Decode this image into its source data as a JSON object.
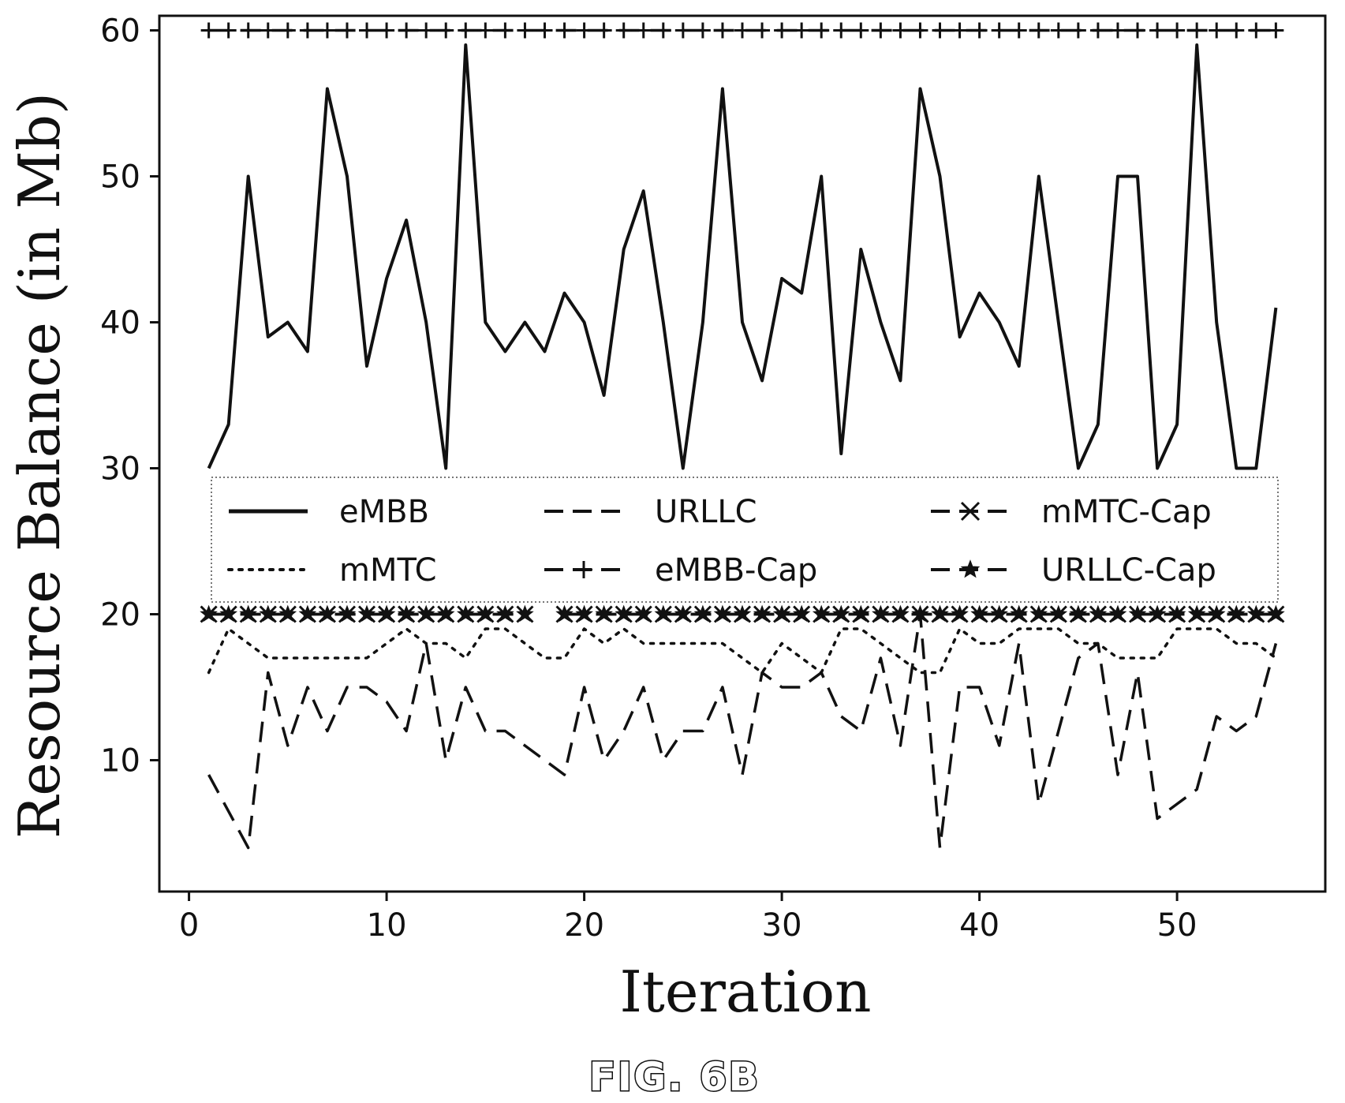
{
  "chart_data": {
    "type": "line",
    "title": "",
    "xlabel": "Iteration",
    "ylabel": "Resource Balance (in Mb)",
    "xlim": [
      -1.5,
      57.5
    ],
    "ylim": [
      1,
      61
    ],
    "xticks": [
      0,
      10,
      20,
      30,
      40,
      50
    ],
    "yticks": [
      10,
      20,
      30,
      40,
      50,
      60
    ],
    "grid": false,
    "legend_position": "center",
    "legend_columns": 3,
    "series": [
      {
        "name": "eMBB",
        "style": "solid",
        "marker": "none",
        "x": [
          1,
          2,
          3,
          4,
          5,
          6,
          7,
          8,
          9,
          10,
          11,
          12,
          13,
          14,
          15,
          16,
          17,
          18,
          19,
          20,
          21,
          22,
          23,
          24,
          25,
          26,
          27,
          28,
          29,
          30,
          31,
          32,
          33,
          34,
          35,
          36,
          37,
          38,
          39,
          40,
          41,
          42,
          43,
          44,
          45,
          46,
          47,
          48,
          49,
          50,
          51,
          52,
          53,
          54,
          55
        ],
        "values": [
          30,
          33,
          50,
          39,
          40,
          38,
          56,
          50,
          37,
          43,
          47,
          40,
          30,
          59,
          40,
          38,
          40,
          38,
          42,
          40,
          35,
          45,
          49,
          40,
          30,
          40,
          56,
          40,
          36,
          43,
          42,
          50,
          31,
          45,
          40,
          36,
          56,
          50,
          39,
          42,
          40,
          37,
          50,
          40,
          30,
          33,
          50,
          50,
          30,
          33,
          59,
          40,
          30,
          30,
          41
        ]
      },
      {
        "name": "URLLC",
        "style": "dashed",
        "marker": "none",
        "x": [
          1,
          2,
          3,
          4,
          5,
          6,
          7,
          8,
          9,
          10,
          11,
          12,
          13,
          14,
          15,
          16,
          17,
          18,
          19,
          20,
          21,
          22,
          23,
          24,
          25,
          26,
          27,
          28,
          29,
          30,
          31,
          32,
          33,
          34,
          35,
          36,
          37,
          38,
          39,
          40,
          41,
          42,
          43,
          44,
          45,
          46,
          47,
          48,
          49,
          50,
          51,
          52,
          53,
          54,
          55
        ],
        "values": [
          9,
          6.5,
          4,
          16,
          11,
          15,
          12,
          15,
          15,
          14,
          12,
          18,
          10,
          15,
          12,
          12,
          11,
          10,
          9,
          15,
          10,
          12,
          15,
          10,
          12,
          12,
          15,
          9,
          16,
          15,
          15,
          16,
          13,
          12,
          17,
          11,
          20,
          4,
          15,
          15,
          11,
          18,
          7,
          12,
          17,
          18,
          9,
          16,
          6,
          7,
          8,
          13,
          12,
          13,
          18
        ]
      },
      {
        "name": "mMTC",
        "style": "dotted",
        "marker": "none",
        "x": [
          1,
          2,
          3,
          4,
          5,
          6,
          7,
          8,
          9,
          10,
          11,
          12,
          13,
          14,
          15,
          16,
          17,
          18,
          19,
          20,
          21,
          22,
          23,
          24,
          25,
          26,
          27,
          28,
          29,
          30,
          31,
          32,
          33,
          34,
          35,
          36,
          37,
          38,
          39,
          40,
          41,
          42,
          43,
          44,
          45,
          46,
          47,
          48,
          49,
          50,
          51,
          52,
          53,
          54,
          55
        ],
        "values": [
          16,
          19,
          18,
          17,
          17,
          17,
          17,
          17,
          17,
          18,
          19,
          18,
          18,
          17,
          19,
          19,
          18,
          17,
          17,
          19,
          18,
          19,
          18,
          18,
          18,
          18,
          18,
          17,
          16,
          18,
          17,
          16,
          19,
          19,
          18,
          17,
          16,
          16,
          19,
          18,
          18,
          19,
          19,
          19,
          18,
          18,
          17,
          17,
          17,
          19,
          19,
          19,
          18,
          18,
          17
        ]
      },
      {
        "name": "eMBB-Cap",
        "style": "dashed",
        "marker": "+",
        "x": [
          1,
          2,
          3,
          4,
          5,
          6,
          7,
          8,
          9,
          10,
          11,
          12,
          13,
          14,
          15,
          16,
          17,
          18,
          19,
          20,
          21,
          22,
          23,
          24,
          25,
          26,
          27,
          28,
          29,
          30,
          31,
          32,
          33,
          34,
          35,
          36,
          37,
          38,
          39,
          40,
          41,
          42,
          43,
          44,
          45,
          46,
          47,
          48,
          49,
          50,
          51,
          52,
          53,
          54,
          55
        ],
        "values": [
          60,
          60,
          60,
          60,
          60,
          60,
          60,
          60,
          60,
          60,
          60,
          60,
          60,
          60,
          60,
          60,
          60,
          60,
          60,
          60,
          60,
          60,
          60,
          60,
          60,
          60,
          60,
          60,
          60,
          60,
          60,
          60,
          60,
          60,
          60,
          60,
          60,
          60,
          60,
          60,
          60,
          60,
          60,
          60,
          60,
          60,
          60,
          60,
          60,
          60,
          60,
          60,
          60,
          60,
          60
        ]
      },
      {
        "name": "mMTC-Cap",
        "style": "dashed",
        "marker": "x",
        "x": [
          1,
          2,
          3,
          4,
          5,
          6,
          7,
          8,
          9,
          10,
          11,
          12,
          13,
          14,
          15,
          16,
          17,
          19,
          20,
          21,
          22,
          23,
          24,
          25,
          26,
          27,
          28,
          29,
          30,
          31,
          32,
          33,
          34,
          35,
          36,
          37,
          38,
          39,
          40,
          41,
          42,
          43,
          44,
          45,
          46,
          47,
          48,
          49,
          50,
          51,
          52,
          53,
          54,
          55
        ],
        "values": [
          20,
          20,
          20,
          20,
          20,
          20,
          20,
          20,
          20,
          20,
          20,
          20,
          20,
          20,
          20,
          20,
          20,
          20,
          20,
          20,
          20,
          20,
          20,
          20,
          20,
          20,
          20,
          20,
          20,
          20,
          20,
          20,
          20,
          20,
          20,
          20,
          20,
          20,
          20,
          20,
          20,
          20,
          20,
          20,
          20,
          20,
          20,
          20,
          20,
          20,
          20,
          20,
          20,
          20
        ]
      },
      {
        "name": "URLLC-Cap",
        "style": "dashed",
        "marker": "*",
        "x": [
          1,
          2,
          3,
          4,
          5,
          6,
          7,
          8,
          9,
          10,
          11,
          12,
          13,
          14,
          15,
          16,
          17,
          19,
          20,
          21,
          22,
          23,
          24,
          25,
          26,
          27,
          28,
          29,
          30,
          31,
          32,
          33,
          34,
          35,
          36,
          37,
          38,
          39,
          40,
          41,
          42,
          43,
          44,
          45,
          46,
          47,
          48,
          49,
          50,
          51,
          52,
          53,
          54,
          55
        ],
        "values": [
          20,
          20,
          20,
          20,
          20,
          20,
          20,
          20,
          20,
          20,
          20,
          20,
          20,
          20,
          20,
          20,
          20,
          20,
          20,
          20,
          20,
          20,
          20,
          20,
          20,
          20,
          20,
          20,
          20,
          20,
          20,
          20,
          20,
          20,
          20,
          20,
          20,
          20,
          20,
          20,
          20,
          20,
          20,
          20,
          20,
          20,
          20,
          20,
          20,
          20,
          20,
          20,
          20,
          20
        ]
      }
    ],
    "legend_order": [
      "eMBB",
      "URLLC",
      "mMTC-Cap",
      "mMTC",
      "eMBB-Cap",
      "URLLC-Cap"
    ]
  },
  "caption": "FIG. 6B"
}
